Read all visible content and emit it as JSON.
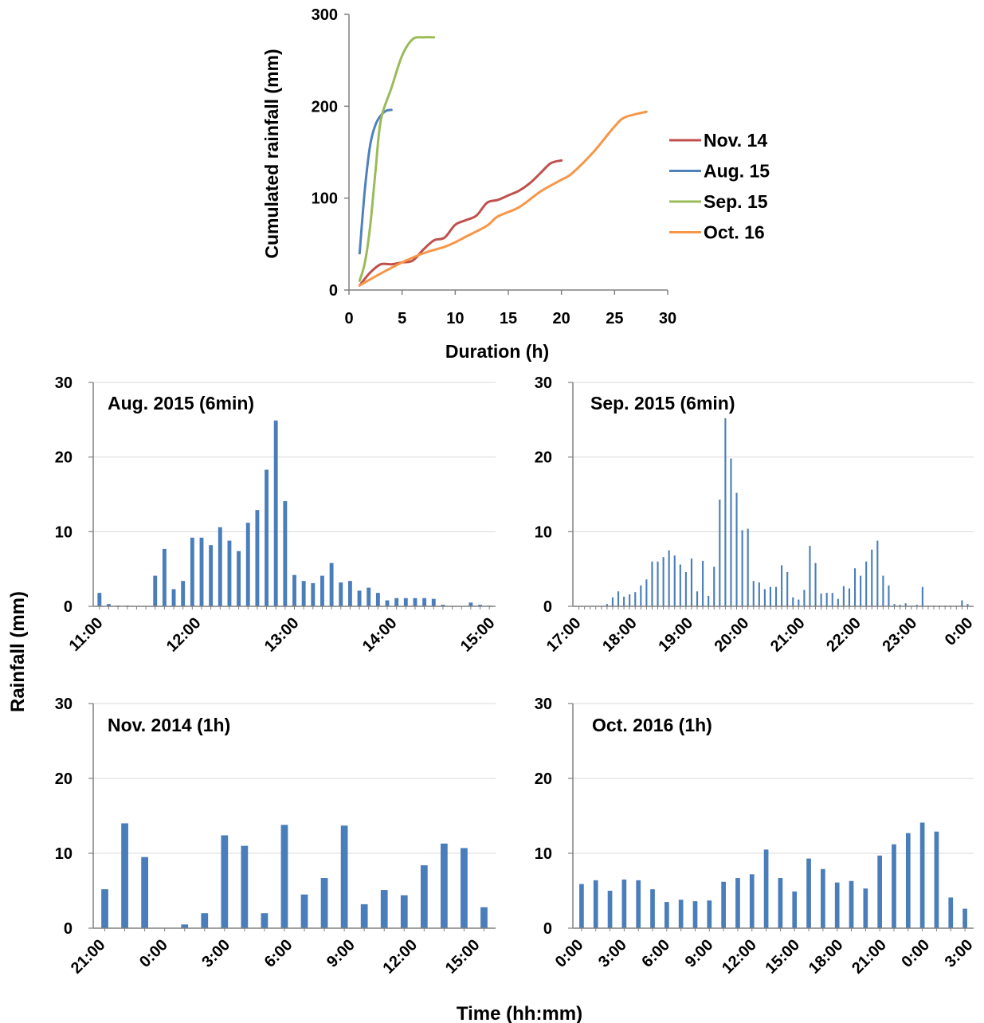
{
  "figure": {
    "shared_ylabel": "Rainfall (mm)",
    "shared_xlabel": "Time (hh:mm)"
  },
  "colors": {
    "bar": "#4a7ebb",
    "nov14": "#c0504d",
    "aug15": "#4f81bd",
    "sep15": "#9bbb59",
    "oct16": "#f79646",
    "grid": "#d9d9d9",
    "axis": "#808080"
  },
  "chart_data": [
    {
      "id": "cumulative",
      "type": "line",
      "title": "",
      "xlabel": "Duration (h)",
      "ylabel": "Cumulated rainfall (mm)",
      "xlim": [
        0,
        30
      ],
      "ylim": [
        0,
        300
      ],
      "xticks": [
        "0",
        "5",
        "10",
        "15",
        "20",
        "25",
        "30"
      ],
      "yticks": [
        "0",
        "100",
        "200",
        "300"
      ],
      "grid": false,
      "legend_position": "right",
      "series": [
        {
          "name": "Nov. 14",
          "color_key": "nov14",
          "x": [
            1,
            2,
            3,
            4,
            5,
            6,
            7,
            8,
            9,
            10,
            11,
            12,
            13,
            14,
            15,
            16,
            17,
            18,
            19,
            20
          ],
          "y": [
            5,
            19,
            28,
            28,
            30,
            32,
            44,
            54,
            57,
            71,
            76,
            81,
            95,
            98,
            103,
            108,
            116,
            127,
            138,
            141
          ]
        },
        {
          "name": "Aug. 15",
          "color_key": "aug15",
          "x": [
            1,
            1.5,
            2,
            2.5,
            3,
            3.5,
            4
          ],
          "y": [
            40,
            110,
            158,
            180,
            190,
            195,
            196
          ]
        },
        {
          "name": "Sep. 15",
          "color_key": "sep15",
          "x": [
            1,
            1.5,
            2,
            2.5,
            3,
            4,
            5,
            6,
            7,
            8
          ],
          "y": [
            10,
            30,
            70,
            130,
            185,
            220,
            255,
            273,
            275,
            275
          ]
        },
        {
          "name": "Oct. 16",
          "color_key": "oct16",
          "x": [
            1,
            3,
            5,
            7,
            9,
            10,
            11,
            13,
            14,
            16,
            18,
            20,
            21,
            23,
            25,
            26,
            28
          ],
          "y": [
            5,
            18,
            30,
            40,
            47,
            52,
            58,
            70,
            80,
            90,
            107,
            120,
            127,
            150,
            178,
            188,
            194
          ]
        }
      ]
    },
    {
      "id": "aug2015",
      "type": "bar",
      "title": "Aug. 2015 (6min)",
      "ylim": [
        0,
        30
      ],
      "yticks": [
        "0",
        "10",
        "20",
        "30"
      ],
      "grid": true,
      "x_start_hours": 11,
      "x_span_hours": 4,
      "xticks": [
        "11:00",
        "12:00",
        "13:00",
        "14:00",
        "15:00"
      ],
      "step_minutes": 6,
      "values": [
        1.8,
        0.3,
        0.1,
        0.1,
        0,
        0,
        4.1,
        7.7,
        2.3,
        3.4,
        9.2,
        9.2,
        8.2,
        10.6,
        8.8,
        7.4,
        11.2,
        12.9,
        18.3,
        24.9,
        14.1,
        4.2,
        3.4,
        3.1,
        4.1,
        5.8,
        3.2,
        3.4,
        2.1,
        2.5,
        1.8,
        0.8,
        1.1,
        1.1,
        1.1,
        1.1,
        1.0,
        0.2,
        0,
        0,
        0.5,
        0.2,
        0.1
      ]
    },
    {
      "id": "sep2015",
      "type": "bar",
      "title": "Sep. 2015 (6min)",
      "ylim": [
        0,
        30
      ],
      "yticks": [
        "0",
        "10",
        "20",
        "30"
      ],
      "grid": true,
      "x_start_hours": 17,
      "x_span_hours": 7,
      "xticks": [
        "17:00",
        "18:00",
        "19:00",
        "20:00",
        "21:00",
        "22:00",
        "23:00",
        "0:00"
      ],
      "step_minutes": 6,
      "values": [
        0,
        0,
        0,
        0,
        0,
        0.3,
        1.2,
        2.0,
        1.3,
        1.6,
        1.9,
        2.8,
        3.6,
        6.0,
        6.0,
        6.6,
        7.5,
        6.8,
        5.6,
        4.6,
        6.4,
        2.0,
        6.1,
        1.4,
        5.3,
        14.3,
        25.2,
        19.8,
        15.2,
        10.2,
        10.4,
        3.4,
        3.2,
        2.3,
        2.6,
        2.6,
        5.5,
        4.6,
        1.2,
        0.9,
        2.2,
        8.1,
        5.8,
        1.7,
        1.8,
        1.8,
        1.0,
        2.7,
        2.4,
        5.1,
        4.1,
        6.0,
        7.6,
        8.8,
        4.1,
        2.8,
        0.3,
        0.2,
        0.4,
        0.1,
        0.2,
        2.6,
        0.1,
        0.1,
        0.1,
        0.1,
        0.1,
        0.1,
        0.8,
        0.3
      ]
    },
    {
      "id": "nov2014",
      "type": "bar",
      "title": "Nov. 2014 (1h)",
      "ylim": [
        0,
        30
      ],
      "yticks": [
        "0",
        "10",
        "20",
        "30"
      ],
      "grid": true,
      "xticks": [
        "21:00",
        "0:00",
        "3:00",
        "6:00",
        "9:00",
        "12:00",
        "15:00"
      ],
      "step_minutes": 60,
      "values": [
        5.2,
        14.0,
        9.5,
        0,
        0.5,
        2.0,
        12.4,
        11.0,
        2.0,
        13.8,
        4.5,
        6.7,
        13.7,
        3.2,
        5.1,
        4.4,
        8.4,
        11.3,
        10.7,
        2.8
      ]
    },
    {
      "id": "oct2016",
      "type": "bar",
      "title": "Oct. 2016 (1h)",
      "ylim": [
        0,
        30
      ],
      "yticks": [
        "0",
        "10",
        "20",
        "30"
      ],
      "grid": true,
      "xticks": [
        "0:00",
        "3:00",
        "6:00",
        "9:00",
        "12:00",
        "15:00",
        "18:00",
        "21:00",
        "0:00",
        "3:00"
      ],
      "step_minutes": 60,
      "values": [
        5.9,
        6.4,
        5.0,
        6.5,
        6.4,
        5.2,
        3.5,
        3.8,
        3.6,
        3.7,
        6.2,
        6.7,
        7.2,
        10.5,
        6.7,
        4.9,
        9.3,
        7.9,
        6.1,
        6.3,
        5.3,
        9.7,
        11.2,
        12.7,
        14.1,
        12.9,
        4.1,
        2.6
      ]
    }
  ]
}
